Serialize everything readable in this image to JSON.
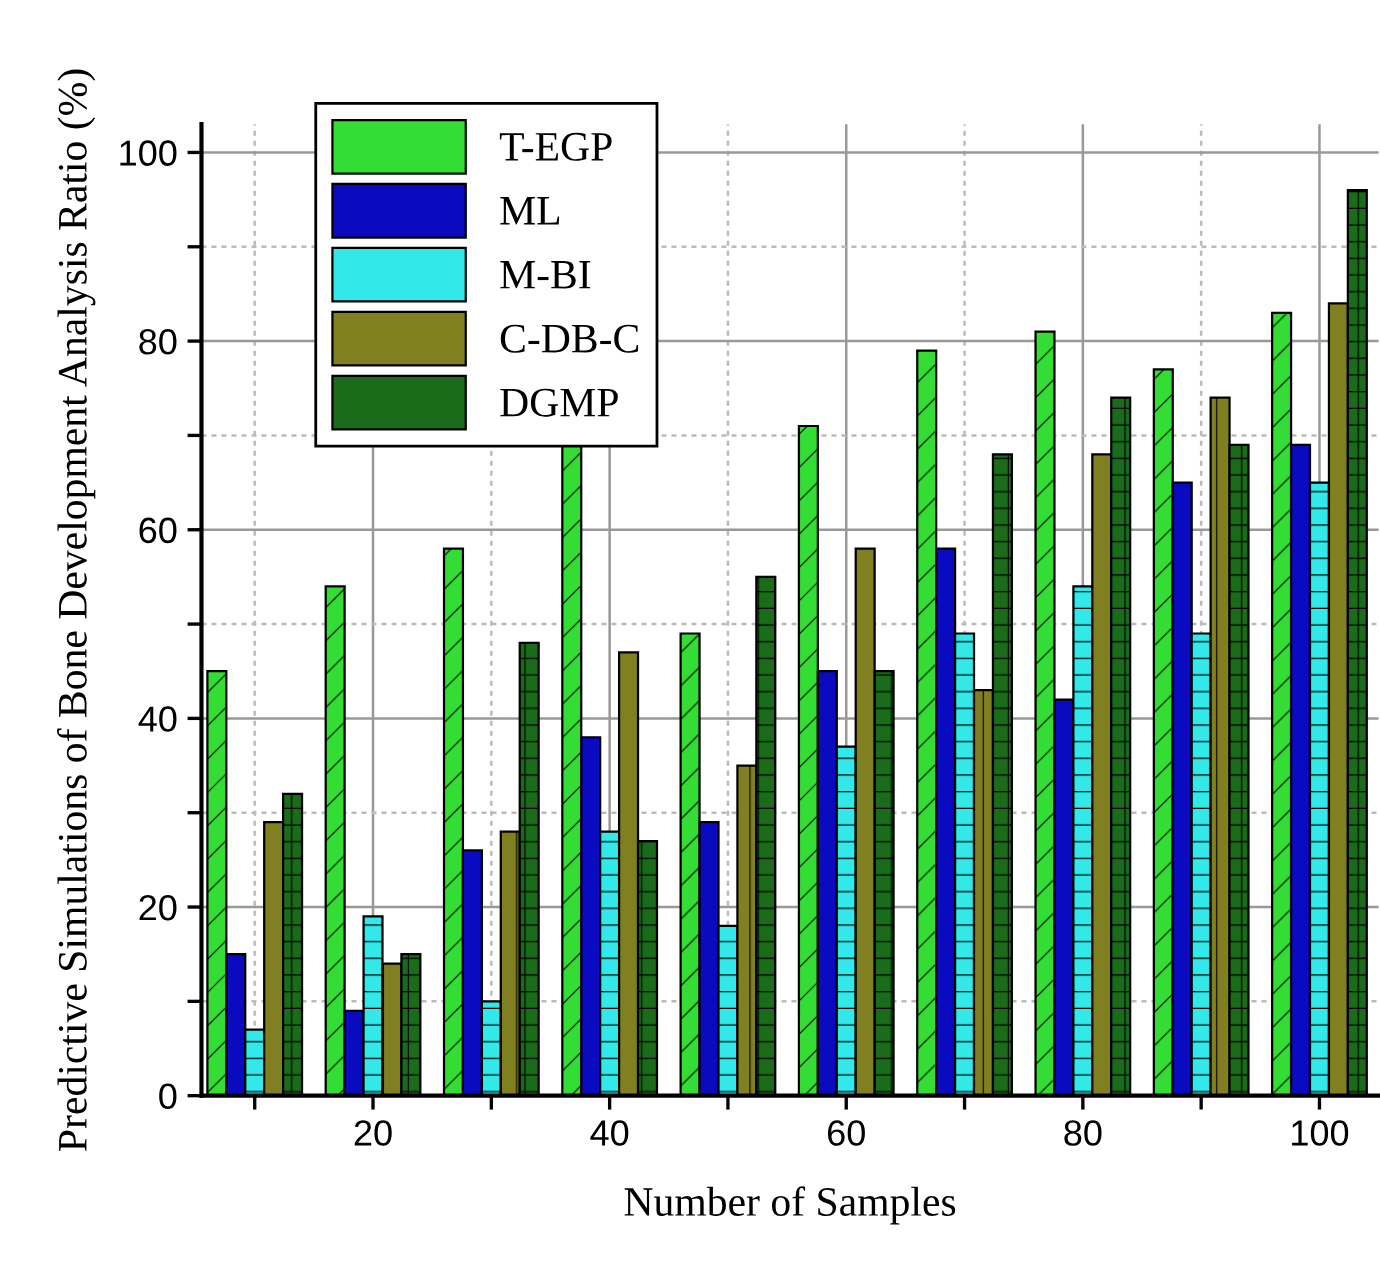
{
  "chart_data": {
    "type": "bar",
    "xlabel": "Number of Samples",
    "ylabel": "Predictive Simulations of Bone Development Analysis Ratio (%)",
    "x": [
      10,
      20,
      30,
      40,
      50,
      60,
      70,
      80,
      90,
      100
    ],
    "series": [
      {
        "name": "T-EGP",
        "color": "#33dd33",
        "values": [
          45,
          54,
          58,
          69,
          49,
          71,
          79,
          81,
          77,
          83
        ]
      },
      {
        "name": "ML",
        "color": "#0a0ac0",
        "values": [
          15,
          9,
          26,
          38,
          29,
          45,
          58,
          42,
          65,
          69
        ]
      },
      {
        "name": "M-BI",
        "color": "#33e8e8",
        "values": [
          7,
          19,
          10,
          28,
          18,
          37,
          49,
          54,
          49,
          65
        ]
      },
      {
        "name": "C-DB-C",
        "color": "#808020",
        "values": [
          29,
          14,
          28,
          47,
          35,
          58,
          43,
          68,
          74,
          84
        ]
      },
      {
        "name": "DGMP",
        "color": "#1a6b1a",
        "values": [
          32,
          15,
          48,
          27,
          55,
          45,
          68,
          74,
          69,
          96
        ]
      }
    ],
    "xlim": [
      5.5,
      105
    ],
    "xticks": [
      {
        "value": 10,
        "label": null
      },
      20,
      {
        "value": 30,
        "label": null
      },
      40,
      {
        "value": 50,
        "label": null
      },
      60,
      {
        "value": 70,
        "label": null
      },
      80,
      {
        "value": 90,
        "label": null
      },
      100
    ],
    "ylim": [
      0,
      103
    ],
    "yticks": [
      0,
      {
        "value": 10,
        "label": null
      },
      20,
      {
        "value": 30,
        "label": null
      },
      40,
      {
        "value": 50,
        "label": null
      },
      60,
      {
        "value": 70,
        "label": null
      },
      80,
      {
        "value": 90,
        "label": null
      },
      100
    ],
    "grid": true,
    "legend": "top left"
  }
}
